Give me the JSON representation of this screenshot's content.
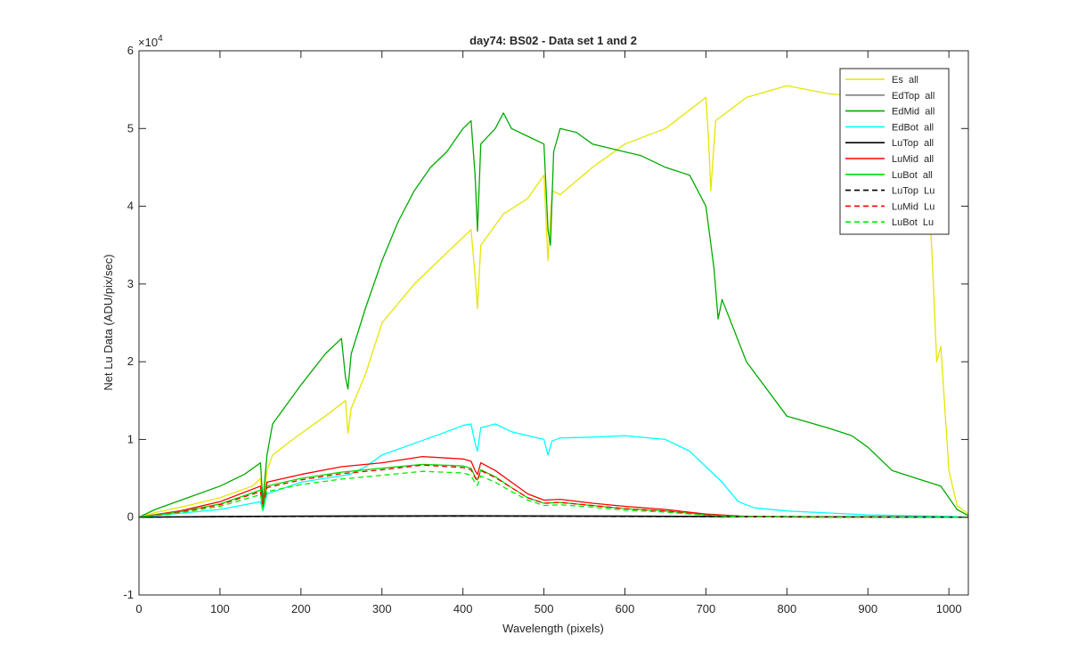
{
  "chart_data": {
    "type": "line",
    "title": "day74: BS02 - Data set 1 and 2",
    "xlabel": "Wavelength (pixels)",
    "ylabel": "Net Lu Data (ADU/pix/sec)",
    "xlim": [
      0,
      1024
    ],
    "ylim": [
      -10000,
      60000
    ],
    "x_ticks": [
      0,
      100,
      200,
      300,
      400,
      500,
      600,
      700,
      800,
      900,
      1000
    ],
    "y_ticks": [
      -10000,
      0,
      10000,
      20000,
      30000,
      40000,
      50000,
      60000
    ],
    "x_tick_labels": [
      "0",
      "100",
      "200",
      "300",
      "400",
      "500",
      "600",
      "700",
      "800",
      "900",
      "1000"
    ],
    "y_tick_labels": [
      "-1",
      "0",
      "1",
      "2",
      "3",
      "4",
      "5",
      "6"
    ],
    "y_exponent_label": "×10",
    "y_exponent_power": "4",
    "grid": false,
    "legend_position": "top-right",
    "series": [
      {
        "name": "Es  all",
        "color": "#e6e600",
        "dash": "solid",
        "x": [
          0,
          20,
          60,
          100,
          140,
          150,
          153,
          158,
          165,
          190,
          230,
          255,
          258,
          262,
          280,
          300,
          340,
          380,
          410,
          415,
          418,
          422,
          450,
          480,
          500,
          505,
          510,
          520,
          560,
          600,
          650,
          700,
          703,
          706,
          712,
          750,
          800,
          850,
          900,
          930,
          960,
          975,
          980,
          985,
          990,
          1000,
          1010,
          1024
        ],
        "y": [
          0,
          600,
          1500,
          2500,
          4000,
          5000,
          1000,
          6000,
          8000,
          10000,
          13000,
          15000,
          10800,
          14000,
          18500,
          25000,
          30000,
          34000,
          37000,
          31000,
          26800,
          35000,
          39000,
          41000,
          44000,
          33000,
          42000,
          41500,
          45000,
          48000,
          50000,
          54000,
          49000,
          42000,
          51000,
          54000,
          55500,
          54500,
          54000,
          53500,
          52000,
          42000,
          32000,
          20000,
          22000,
          6000,
          1500,
          400
        ]
      },
      {
        "name": "EdTop  all",
        "color": "#808080",
        "dash": "solid",
        "x": [
          0,
          100,
          200,
          400,
          600,
          800,
          1024
        ],
        "y": [
          0,
          40,
          70,
          90,
          70,
          40,
          0
        ]
      },
      {
        "name": "EdMid  all",
        "color": "#00aa00",
        "dash": "solid",
        "x": [
          0,
          20,
          60,
          100,
          130,
          150,
          153,
          158,
          165,
          200,
          230,
          250,
          255,
          258,
          262,
          280,
          300,
          320,
          340,
          360,
          380,
          400,
          410,
          415,
          418,
          422,
          440,
          450,
          460,
          480,
          500,
          505,
          508,
          512,
          520,
          540,
          560,
          580,
          600,
          620,
          650,
          680,
          700,
          710,
          715,
          720,
          750,
          800,
          850,
          880,
          900,
          930,
          960,
          990,
          1010,
          1024
        ],
        "y": [
          0,
          1000,
          2500,
          4000,
          5500,
          7000,
          2000,
          8000,
          12000,
          17000,
          21000,
          23000,
          18000,
          16500,
          21000,
          27000,
          33000,
          38000,
          42000,
          45000,
          47000,
          50000,
          51000,
          44000,
          36800,
          48000,
          50000,
          52000,
          50000,
          49000,
          48000,
          37000,
          35000,
          47000,
          50000,
          49500,
          48000,
          47500,
          47000,
          46500,
          45000,
          44000,
          40000,
          32000,
          25500,
          28000,
          20000,
          13000,
          11500,
          10500,
          9000,
          6000,
          5000,
          4000,
          1000,
          200
        ]
      },
      {
        "name": "EdBot  all",
        "color": "#00ffff",
        "dash": "solid",
        "x": [
          0,
          100,
          150,
          153,
          158,
          200,
          260,
          280,
          300,
          340,
          380,
          400,
          410,
          415,
          418,
          422,
          440,
          460,
          480,
          500,
          505,
          510,
          520,
          560,
          600,
          650,
          680,
          700,
          720,
          740,
          760,
          800,
          900,
          1000,
          1024
        ],
        "y": [
          0,
          1000,
          2000,
          800,
          3000,
          4500,
          5500,
          6500,
          8000,
          9500,
          11000,
          11800,
          12000,
          9500,
          8500,
          11500,
          12000,
          11000,
          10500,
          10000,
          8000,
          9800,
          10200,
          10300,
          10500,
          10000,
          8500,
          6500,
          4500,
          2000,
          1200,
          800,
          300,
          100,
          0
        ]
      },
      {
        "name": "LuTop  all",
        "color": "#000000",
        "dash": "solid",
        "x": [
          0,
          100,
          200,
          400,
          600,
          800,
          1000,
          1024
        ],
        "y": [
          0,
          100,
          150,
          200,
          150,
          80,
          20,
          0
        ]
      },
      {
        "name": "LuMid  all",
        "color": "#ff0000",
        "dash": "solid",
        "x": [
          0,
          50,
          100,
          150,
          153,
          158,
          200,
          250,
          300,
          350,
          400,
          410,
          415,
          418,
          422,
          440,
          460,
          480,
          500,
          520,
          560,
          600,
          650,
          700,
          750,
          800,
          900,
          1024
        ],
        "y": [
          0,
          800,
          2000,
          4000,
          1500,
          4500,
          5500,
          6500,
          7000,
          7800,
          7500,
          7200,
          6000,
          5500,
          7000,
          6000,
          4500,
          3000,
          2200,
          2300,
          1800,
          1400,
          1000,
          400,
          100,
          50,
          0,
          0
        ]
      },
      {
        "name": "LuBot  all",
        "color": "#00dd00",
        "dash": "solid",
        "x": [
          0,
          50,
          100,
          150,
          153,
          158,
          200,
          250,
          300,
          350,
          400,
          410,
          415,
          418,
          422,
          440,
          460,
          480,
          500,
          520,
          560,
          600,
          650,
          700,
          750,
          800,
          900,
          1024
        ],
        "y": [
          0,
          700,
          1700,
          3500,
          1200,
          4000,
          5000,
          5800,
          6300,
          6800,
          6600,
          6300,
          5200,
          4800,
          6100,
          5200,
          3800,
          2500,
          1800,
          1900,
          1500,
          1100,
          800,
          300,
          80,
          30,
          0,
          0
        ]
      },
      {
        "name": "LuTop  Lu",
        "color": "#000000",
        "dash": "dashed",
        "x": [
          0,
          100,
          200,
          400,
          600,
          800,
          1000,
          1024
        ],
        "y": [
          0,
          80,
          120,
          160,
          120,
          60,
          15,
          0
        ]
      },
      {
        "name": "LuMid  Lu",
        "color": "#ff0000",
        "dash": "dashed",
        "x": [
          0,
          50,
          100,
          150,
          153,
          158,
          200,
          250,
          300,
          350,
          400,
          410,
          415,
          418,
          422,
          440,
          460,
          480,
          500,
          520,
          560,
          600,
          650,
          700,
          750,
          800,
          900,
          1024
        ],
        "y": [
          0,
          650,
          1600,
          3300,
          1200,
          3800,
          4800,
          5600,
          6100,
          6700,
          6400,
          6100,
          5100,
          4700,
          6000,
          5100,
          3800,
          2500,
          1800,
          1900,
          1500,
          1100,
          800,
          300,
          80,
          30,
          0,
          0
        ]
      },
      {
        "name": "LuBot  Lu",
        "color": "#00ee00",
        "dash": "dashed",
        "x": [
          0,
          50,
          100,
          150,
          153,
          158,
          200,
          250,
          300,
          350,
          400,
          410,
          415,
          418,
          422,
          440,
          460,
          480,
          500,
          520,
          560,
          600,
          650,
          700,
          750,
          800,
          900,
          1024
        ],
        "y": [
          0,
          550,
          1400,
          2900,
          1000,
          3300,
          4200,
          4900,
          5400,
          5900,
          5700,
          5400,
          4400,
          4100,
          5300,
          4500,
          3300,
          2200,
          1500,
          1600,
          1300,
          900,
          650,
          250,
          60,
          20,
          0,
          0
        ]
      }
    ]
  }
}
